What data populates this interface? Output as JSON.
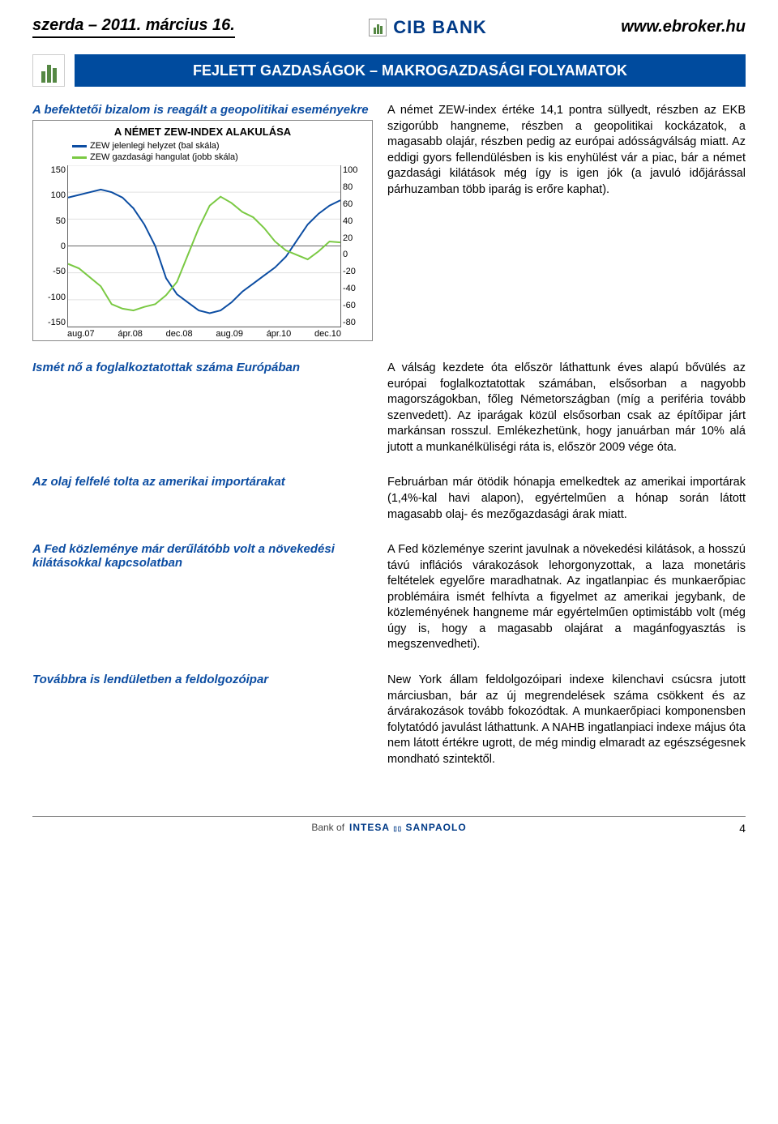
{
  "header": {
    "date": "szerda – 2011. március 16.",
    "bank_name": "CIB BANK",
    "url": "www.ebroker.hu"
  },
  "banner": "FEJLETT GAZDASÁGOK – MAKROGAZDASÁGI FOLYAMATOK",
  "section1": {
    "heading": "A befektetői bizalom is reagált a geopolitikai eseményekre",
    "chart": {
      "type": "line-dual-axis",
      "title": "A NÉMET ZEW-INDEX ALAKULÁSA",
      "series": [
        {
          "name": "ZEW jelenlegi helyzet (bal skála)",
          "color": "#0c4da2",
          "axis": "left",
          "values": [
            90,
            95,
            100,
            105,
            100,
            90,
            70,
            40,
            0,
            -60,
            -90,
            -105,
            -120,
            -125,
            -120,
            -105,
            -85,
            -70,
            -55,
            -40,
            -20,
            10,
            40,
            60,
            75,
            85
          ]
        },
        {
          "name": "ZEW gazdasági hangulat (jobb skála)",
          "color": "#7ac943",
          "axis": "right",
          "values": [
            -10,
            -15,
            -25,
            -35,
            -55,
            -60,
            -62,
            -58,
            -55,
            -45,
            -30,
            0,
            30,
            55,
            65,
            58,
            48,
            42,
            30,
            15,
            5,
            0,
            -5,
            4,
            15,
            14
          ]
        }
      ],
      "left_axis": {
        "min": -150,
        "max": 150,
        "step": 50,
        "ticks": [
          150,
          100,
          50,
          0,
          -50,
          -100,
          -150
        ]
      },
      "right_axis": {
        "min": -80,
        "max": 100,
        "step": 20,
        "ticks": [
          100,
          80,
          60,
          40,
          20,
          0,
          -20,
          -40,
          -60,
          -80
        ]
      },
      "x_labels": [
        "aug.07",
        "ápr.08",
        "dec.08",
        "aug.09",
        "ápr.10",
        "dec.10"
      ],
      "grid_color": "#e0e0e0",
      "background_color": "#ffffff",
      "title_fontsize": 13,
      "legend_fontsize": 11,
      "axis_fontsize": 11,
      "line_width": 2
    },
    "body": "A német ZEW-index értéke 14,1 pontra süllyedt, részben az EKB szigorúbb hangneme, részben a geopolitikai kockázatok, a magasabb olajár, részben pedig az európai adósságválság miatt. Az eddigi gyors fellendülésben is kis enyhülést vár a piac, bár a német gazdasági kilátások még így is igen jók (a javuló időjárással párhuzamban több iparág is erőre kaphat)."
  },
  "sections": [
    {
      "heading": "Ismét nő a foglalkoztatottak száma Európában",
      "body": "A válság kezdete óta először láthattunk éves alapú bővülés az európai foglalkoztatottak számában, elsősorban a nagyobb magországokban, főleg Németországban (míg a periféria tovább szenvedett). Az iparágak közül elsősorban csak az építőipar járt markánsan rosszul. Emlékezhetünk, hogy januárban már 10% alá jutott a munkanélküliségi ráta is, először 2009 vége óta."
    },
    {
      "heading": "Az olaj felfelé tolta az amerikai importárakat",
      "body": "Februárban már ötödik hónapja emelkedtek az amerikai importárak (1,4%-kal havi alapon), egyértelműen a hónap során látott magasabb olaj- és mezőgazdasági árak miatt."
    },
    {
      "heading": "A Fed közleménye már derűlátóbb volt a növekedési kilátásokkal kapcsolatban",
      "body": "A Fed közleménye szerint javulnak a növekedési kilátások, a hosszú távú inflációs várakozások lehorgonyzottak, a laza monetáris feltételek egyelőre maradhatnak. Az ingatlanpiac és munkaerőpiac problémáira ismét felhívta a figyelmet az amerikai jegybank, de közleményének hangneme már egyértelműen optimistább volt (még úgy is, hogy a magasabb olajárat a magánfogyasztás is megszenvedheti)."
    },
    {
      "heading": "Továbbra is lendületben a feldolgozóipar",
      "body": "New York állam feldolgozóipari indexe kilenchavi csúcsra jutott márciusban, bár az új megrendelések száma csökkent és az árvárakozások tovább fokozódtak. A munkaerőpiaci komponensben folytatódó javulást láthattunk. A NAHB ingatlanpiaci indexe május óta nem látott értékre ugrott, de még mindig elmaradt az egészségesnek mondható szintektől."
    }
  ],
  "footer": {
    "prefix": "Bank of",
    "brand1": "INTESA",
    "brand2": "SANPAOLO",
    "page": "4"
  },
  "colors": {
    "brand_blue": "#004b9e",
    "link_blue": "#0c4da2",
    "green": "#7ac943"
  }
}
